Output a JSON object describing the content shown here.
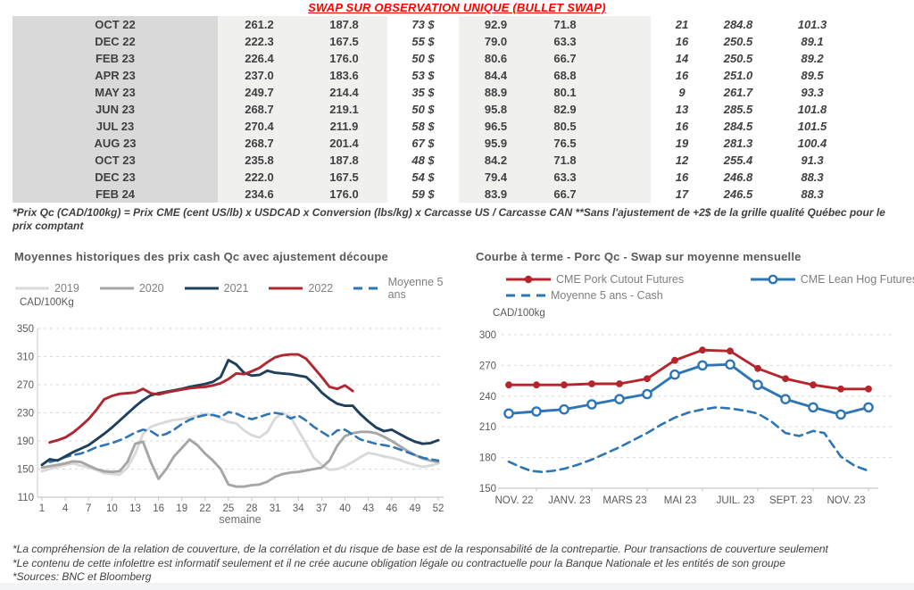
{
  "page": {
    "title": "SWAP SUR OBSERVATION UNIQUE (BULLET SWAP)",
    "table_footnote": "*Prix Qc (CAD/100kg) = Prix CME (cent US/lb) x USDCAD x Conversion (lbs/kg) x Carcasse US / Carcasse CAN **Sans l'ajustement de +2$ de la grille qualité Québec pour le prix comptant",
    "footnotes": [
      "*La compréhension de la relation de couverture, de la corrélation et du risque de base est de la responsabilité de la contrepartie. Pour transactions de couverture seulement",
      "*Le contenu de cette infolettre est informatif seulement et il ne crée aucune obligation légale ou contractuelle pour la Banque Nationale et les entités de son groupe",
      "*Sources: BNC et Bloomberg"
    ]
  },
  "colors": {
    "title_red": "#ff0000",
    "table_text": "#404040",
    "green_text": "#00a651",
    "blue_text": "#4472c4",
    "month_col_bg": "#d9d9d9",
    "value_col_bg": "#f0f0ef",
    "chart_title": "#595959",
    "axis_text": "#595959",
    "legend_text": "#7f7f7f"
  },
  "table": {
    "col_styles": [
      "dark",
      "dark",
      "green",
      "dark",
      "dark",
      "green",
      "blue",
      "blue"
    ],
    "rows": [
      {
        "month": "OCT 22",
        "values": [
          "261.2",
          "187.8",
          "73 $",
          "92.9",
          "71.8",
          "21",
          "284.8",
          "101.3"
        ]
      },
      {
        "month": "DEC 22",
        "values": [
          "222.3",
          "167.5",
          "55 $",
          "79.0",
          "63.3",
          "16",
          "250.5",
          "89.1"
        ]
      },
      {
        "month": "FEB 23",
        "values": [
          "226.4",
          "176.0",
          "50 $",
          "80.6",
          "66.7",
          "14",
          "250.5",
          "89.2"
        ]
      },
      {
        "month": "APR 23",
        "values": [
          "237.0",
          "183.6",
          "53 $",
          "84.4",
          "68.8",
          "16",
          "251.0",
          "89.5"
        ]
      },
      {
        "month": "MAY 23",
        "values": [
          "249.7",
          "214.4",
          "35 $",
          "88.9",
          "80.1",
          "9",
          "261.7",
          "93.3"
        ]
      },
      {
        "month": "JUN 23",
        "values": [
          "268.7",
          "219.1",
          "50 $",
          "95.8",
          "82.9",
          "13",
          "285.5",
          "101.8"
        ]
      },
      {
        "month": "JUL 23",
        "values": [
          "270.4",
          "211.9",
          "58 $",
          "96.5",
          "80.5",
          "16",
          "284.5",
          "101.5"
        ]
      },
      {
        "month": "AUG 23",
        "values": [
          "268.7",
          "201.4",
          "67 $",
          "95.9",
          "76.5",
          "19",
          "281.3",
          "100.4"
        ]
      },
      {
        "month": "OCT 23",
        "values": [
          "235.8",
          "187.8",
          "48 $",
          "84.2",
          "71.8",
          "12",
          "255.4",
          "91.3"
        ]
      },
      {
        "month": "DEC 23",
        "values": [
          "222.0",
          "167.5",
          "54 $",
          "79.4",
          "63.3",
          "16",
          "246.8",
          "88.3"
        ]
      },
      {
        "month": "FEB 24",
        "values": [
          "234.6",
          "176.0",
          "59 $",
          "83.9",
          "66.7",
          "17",
          "246.5",
          "88.3"
        ]
      }
    ]
  },
  "chart_data": [
    {
      "type": "line",
      "title": "Moyennes historiques des prix cash Qc avec ajustement découpe",
      "ylabel": "CAD/100Kg",
      "xlabel": "semaine",
      "ylim": [
        110,
        350
      ],
      "yticks": [
        110,
        150,
        190,
        230,
        270,
        310,
        350
      ],
      "xticks": [
        1,
        4,
        7,
        10,
        13,
        16,
        19,
        22,
        25,
        28,
        31,
        34,
        37,
        40,
        43,
        46,
        49,
        52
      ],
      "grid": "dashed horizontal",
      "legend_position": "top",
      "series": [
        {
          "name": "2019",
          "color": "#d9d9d9",
          "x_start": 1,
          "values": [
            147,
            150,
            153,
            156,
            158,
            155,
            152,
            149,
            144,
            143,
            142,
            152,
            172,
            200,
            210,
            214,
            217,
            220,
            221,
            223,
            226,
            228,
            227,
            222,
            217,
            215,
            205,
            198,
            195,
            203,
            222,
            230,
            224,
            205,
            186,
            166,
            156,
            149,
            150,
            154,
            160,
            167,
            173,
            171,
            168,
            166,
            163,
            159,
            156,
            153,
            155,
            158
          ]
        },
        {
          "name": "2020",
          "color": "#a6a6a6",
          "x_start": 1,
          "values": [
            152,
            154,
            156,
            158,
            161,
            160,
            155,
            150,
            147,
            146,
            147,
            160,
            186,
            189,
            160,
            136,
            150,
            168,
            180,
            192,
            184,
            172,
            162,
            150,
            128,
            125,
            125,
            127,
            128,
            132,
            139,
            143,
            145,
            146,
            148,
            150,
            152,
            162,
            183,
            197,
            201,
            203,
            203,
            201,
            196,
            190,
            183,
            176,
            170,
            165,
            162,
            160
          ]
        },
        {
          "name": "2021",
          "color": "#1e405c",
          "x_start": 1,
          "values": [
            156,
            164,
            162,
            168,
            174,
            179,
            184,
            192,
            200,
            209,
            219,
            229,
            239,
            248,
            255,
            258,
            260,
            262,
            264,
            267,
            269,
            271,
            274,
            281,
            305,
            299,
            287,
            283,
            284,
            290,
            287,
            286,
            285,
            283,
            281,
            271,
            259,
            250,
            243,
            240,
            240,
            228,
            218,
            209,
            204,
            206,
            200,
            194,
            189,
            186,
            187,
            191
          ]
        },
        {
          "name": "2022",
          "color": "#b02730",
          "x_start": 2,
          "values": [
            188,
            191,
            195,
            202,
            211,
            221,
            234,
            249,
            254,
            257,
            258,
            259,
            264,
            258,
            256,
            259,
            261,
            263,
            265,
            266,
            267,
            269,
            272,
            278,
            286,
            285,
            289,
            294,
            302,
            309,
            312,
            313,
            313,
            307,
            294,
            281,
            267,
            264,
            269,
            261
          ]
        },
        {
          "name": "Moyenne 5 ans",
          "color": "#2e75b6",
          "dash": true,
          "x_start": 2,
          "values": [
            160,
            163,
            167,
            170,
            172,
            176,
            181,
            184,
            187,
            191,
            196,
            202,
            206,
            204,
            197,
            200,
            206,
            214,
            220,
            224,
            227,
            227,
            224,
            231,
            229,
            224,
            221,
            224,
            228,
            230,
            228,
            222,
            226,
            219,
            210,
            203,
            196,
            205,
            206,
            199,
            192,
            189,
            186,
            184,
            182,
            178,
            174,
            170,
            166,
            164,
            162
          ]
        }
      ]
    },
    {
      "type": "line",
      "title": "Courbe à terme - Porc Qc - Swap sur moyenne mensuelle",
      "ylabel": "CAD/100kg",
      "ylim": [
        150,
        300
      ],
      "yticks": [
        150,
        180,
        210,
        240,
        270,
        300
      ],
      "x_range_months": 14,
      "xtick_labels": [
        "NOV. 22",
        "JANV. 23",
        "MARS 23",
        "MAI 23",
        "JUIL. 23",
        "SEPT. 23",
        "NOV. 23"
      ],
      "xtick_positions": [
        0,
        2,
        4,
        6,
        8,
        10,
        12
      ],
      "grid": "dashed horizontal",
      "legend_position": "top",
      "series": [
        {
          "name": "CME Pork Cutout Futures",
          "color": "#b6252b",
          "marker": "filled",
          "x_start": 0,
          "values": [
            251,
            251,
            251,
            252,
            252,
            257,
            275,
            285,
            284,
            267,
            257,
            251,
            247,
            247
          ]
        },
        {
          "name": "CME Lean Hog Futures",
          "color": "#2e75b6",
          "marker": "open",
          "x_start": 0,
          "values": [
            223,
            225,
            227,
            232,
            237,
            242,
            261,
            270,
            271,
            251,
            237,
            229,
            222,
            229
          ]
        },
        {
          "name": "Moyenne 5 ans - Cash",
          "color": "#2e75b6",
          "dash": true,
          "points": [
            [
              0,
              176
            ],
            [
              0.4,
              171
            ],
            [
              0.8,
              167
            ],
            [
              1.2,
              166
            ],
            [
              1.6,
              167
            ],
            [
              2,
              169
            ],
            [
              2.5,
              173
            ],
            [
              3,
              178
            ],
            [
              3.5,
              184
            ],
            [
              4,
              190
            ],
            [
              4.5,
              197
            ],
            [
              5,
              204
            ],
            [
              5.5,
              212
            ],
            [
              6,
              219
            ],
            [
              6.5,
              224
            ],
            [
              7,
              227
            ],
            [
              7.5,
              229
            ],
            [
              8,
              228
            ],
            [
              8.5,
              226
            ],
            [
              9,
              223
            ],
            [
              9.5,
              215
            ],
            [
              10,
              204
            ],
            [
              10.5,
              201
            ],
            [
              11,
              206
            ],
            [
              11.4,
              204
            ],
            [
              12,
              181
            ],
            [
              12.5,
              172
            ],
            [
              13,
              167
            ]
          ]
        }
      ]
    }
  ]
}
